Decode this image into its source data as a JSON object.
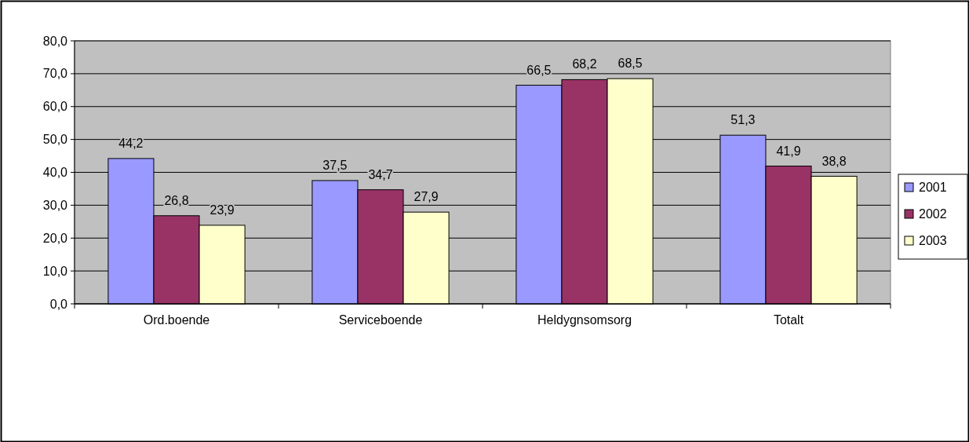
{
  "chart_data": {
    "type": "bar",
    "categories": [
      "Ord.boende",
      "Serviceboende",
      "Heldygnsomsorg",
      "Totalt"
    ],
    "series": [
      {
        "name": "2001",
        "color": "#9999ff",
        "values": [
          44.2,
          37.5,
          66.5,
          51.3
        ],
        "value_labels": [
          "44,2",
          "37,5",
          "66,5",
          "51,3"
        ]
      },
      {
        "name": "2002",
        "color": "#993366",
        "values": [
          26.8,
          34.7,
          68.2,
          41.9
        ],
        "value_labels": [
          "26,8",
          "34,7",
          "68,2",
          "41,9"
        ]
      },
      {
        "name": "2003",
        "color": "#ffffcc",
        "values": [
          23.9,
          27.9,
          68.5,
          38.8
        ],
        "value_labels": [
          "23,9",
          "27,9",
          "68,5",
          "38,8"
        ]
      }
    ],
    "ylim": [
      0,
      80
    ],
    "yticks": [
      {
        "value": 0,
        "label": "0,0"
      },
      {
        "value": 10,
        "label": "10,0"
      },
      {
        "value": 20,
        "label": "20,0"
      },
      {
        "value": 30,
        "label": "30,0"
      },
      {
        "value": 40,
        "label": "40,0"
      },
      {
        "value": 50,
        "label": "50,0"
      },
      {
        "value": 60,
        "label": "60,0"
      },
      {
        "value": 70,
        "label": "70,0"
      },
      {
        "value": 80,
        "label": "80,0"
      }
    ],
    "grid": "y",
    "legend": "right"
  }
}
